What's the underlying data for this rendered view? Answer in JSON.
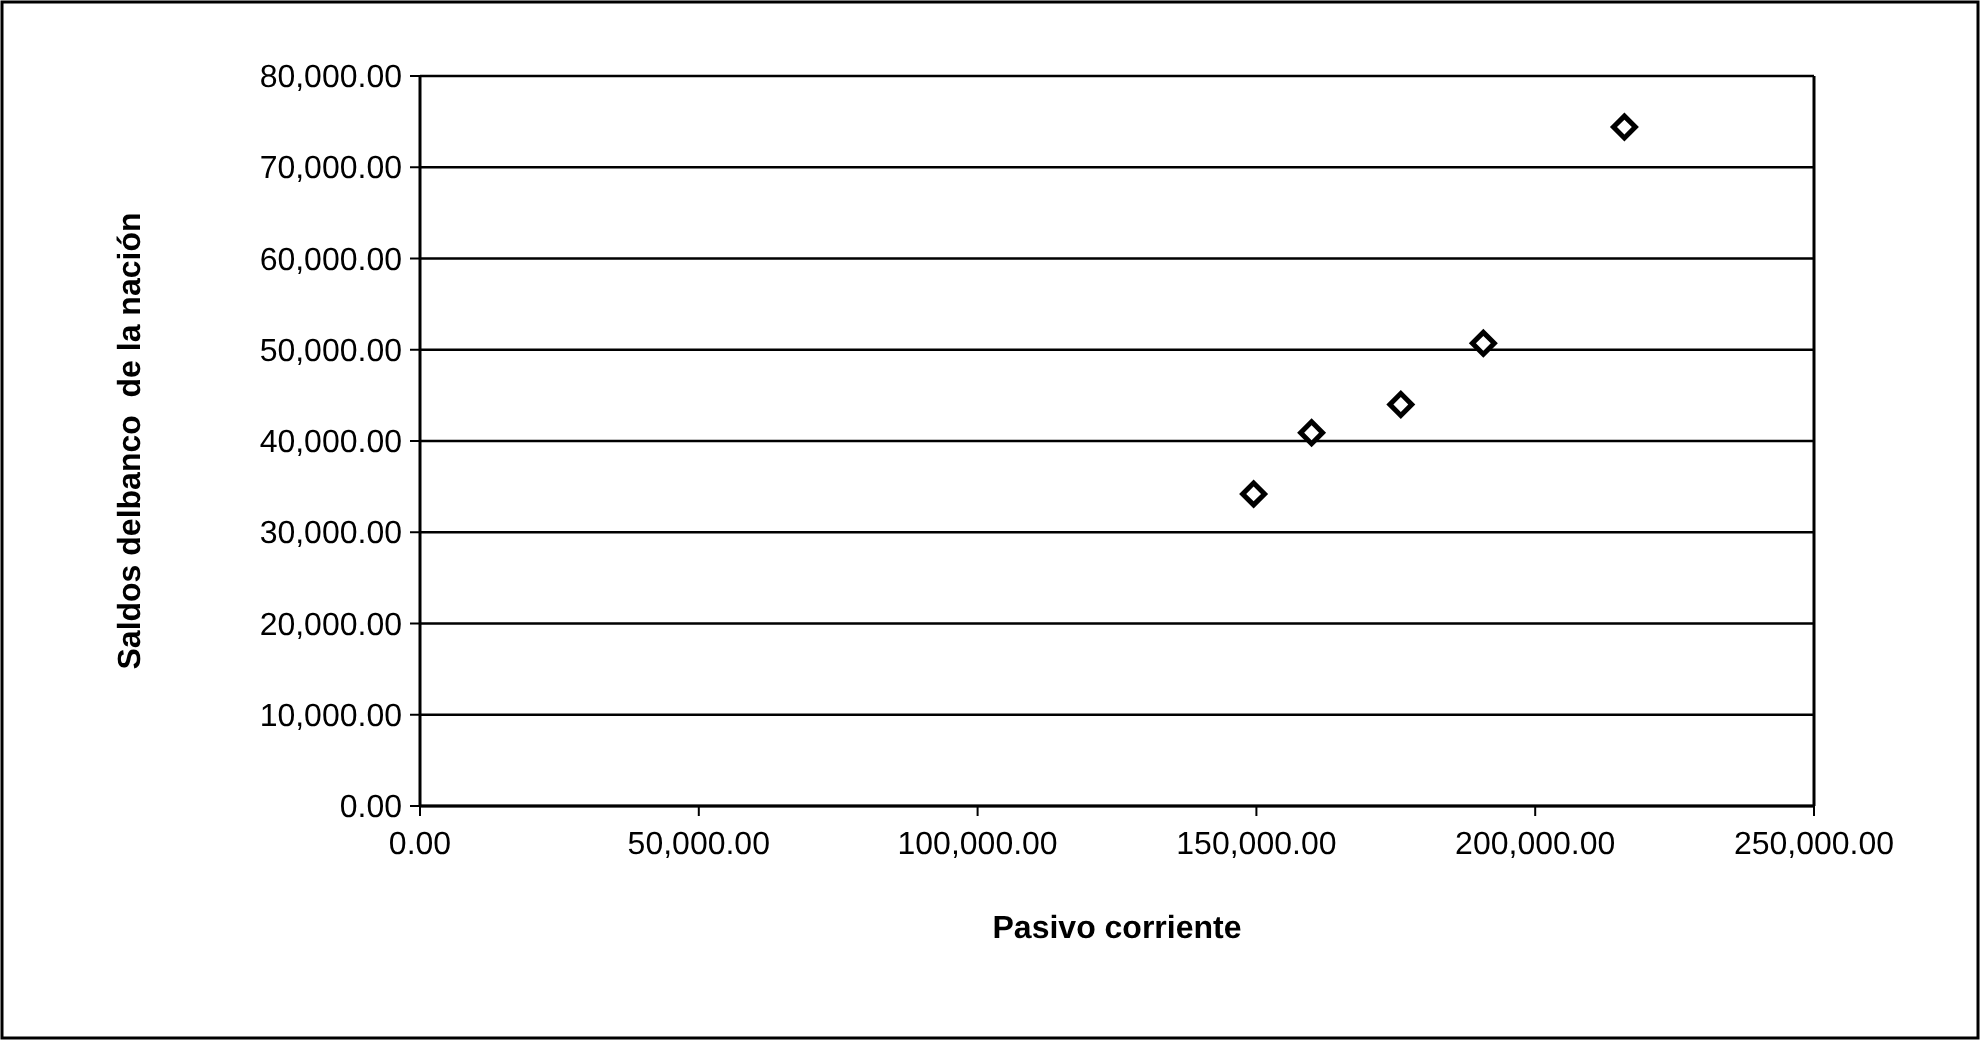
{
  "chart_data": {
    "type": "scatter",
    "xlabel": "Pasivo corriente",
    "ylabel": "Saldos delbanco  de la nación",
    "x": [
      149500,
      159900,
      175900,
      190700,
      216000
    ],
    "values": [
      34200,
      40900,
      44000,
      50700,
      74400
    ],
    "color": "#000000",
    "marker": "diamond",
    "grid": "y",
    "xlim": [
      0,
      250000
    ],
    "xticks": [
      {
        "value": 0,
        "label": "0.00"
      },
      {
        "value": 50000,
        "label": "50,000.00"
      },
      {
        "value": 100000,
        "label": "100,000.00"
      },
      {
        "value": 150000,
        "label": "150,000.00"
      },
      {
        "value": 200000,
        "label": "200,000.00"
      },
      {
        "value": 250000,
        "label": "250,000.00"
      }
    ],
    "ylim": [
      0,
      80000
    ],
    "yticks": [
      {
        "value": 0,
        "label": "0.00"
      },
      {
        "value": 10000,
        "label": "10,000.00"
      },
      {
        "value": 20000,
        "label": "20,000.00"
      },
      {
        "value": 30000,
        "label": "30,000.00"
      },
      {
        "value": 40000,
        "label": "40,000.00"
      },
      {
        "value": 50000,
        "label": "50,000.00"
      },
      {
        "value": 60000,
        "label": "60,000.00"
      },
      {
        "value": 70000,
        "label": "70,000.00"
      },
      {
        "value": 80000,
        "label": "80,000.00"
      }
    ]
  }
}
